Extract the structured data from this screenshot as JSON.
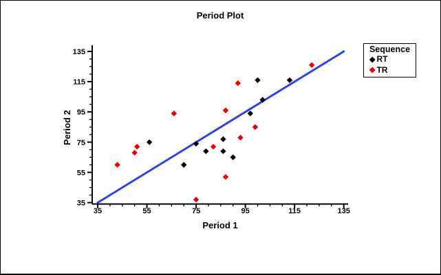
{
  "window": {
    "background_color": "#FFFFFF",
    "frame_color": "#000000"
  },
  "chart_data": {
    "type": "scatter",
    "title": "Period Plot",
    "xlabel": "Period 1",
    "ylabel": "Period 2",
    "xlim": [
      35,
      135
    ],
    "ylim": [
      35,
      135
    ],
    "xticks": [
      35,
      55,
      75,
      95,
      115,
      135
    ],
    "yticks": [
      35,
      55,
      75,
      95,
      115,
      135
    ],
    "minor_tick_step": 5,
    "grid": false,
    "legend_title": "Sequence",
    "legend_position": "outside-top-right",
    "marker": "diamond",
    "series": [
      {
        "name": "RT",
        "color": "#000000",
        "points": [
          [
            56,
            75
          ],
          [
            70,
            60
          ],
          [
            75,
            74
          ],
          [
            79,
            69
          ],
          [
            86,
            69
          ],
          [
            86,
            77
          ],
          [
            90,
            65
          ],
          [
            97,
            94
          ],
          [
            100,
            116
          ],
          [
            102,
            103
          ],
          [
            113,
            116
          ]
        ]
      },
      {
        "name": "TR",
        "color": "#E60000",
        "points": [
          [
            43,
            60
          ],
          [
            50,
            68
          ],
          [
            51,
            72
          ],
          [
            66,
            94
          ],
          [
            75,
            37
          ],
          [
            82,
            72
          ],
          [
            87,
            52
          ],
          [
            87,
            96
          ],
          [
            92,
            114
          ],
          [
            93,
            78
          ],
          [
            99,
            85
          ],
          [
            122,
            126
          ]
        ]
      }
    ],
    "reference_line": {
      "description": "identity line y = x",
      "from": [
        35,
        35
      ],
      "to": [
        135,
        135
      ],
      "color": "#3342DE",
      "width": 3
    }
  }
}
